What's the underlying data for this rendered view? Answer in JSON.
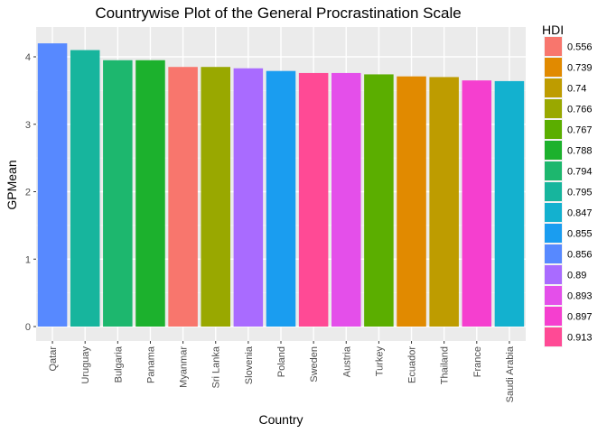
{
  "chart_data": {
    "type": "bar",
    "title": "Countrywise Plot of the General Procrastination Scale",
    "xlabel": "Country",
    "ylabel": "GPMean",
    "ylim": [
      0,
      4.3
    ],
    "yticks": [
      0,
      1,
      2,
      3,
      4
    ],
    "grid": true,
    "legend_position": "right",
    "categories": [
      "Qatar",
      "Uruguay",
      "Bulgaria",
      "Panama",
      "Myanmar",
      "Sri Lanka",
      "Slovenia",
      "Poland",
      "Sweden",
      "Austria",
      "Turkey",
      "Ecuador",
      "Thailand",
      "France",
      "Saudi Arabia"
    ],
    "values": [
      4.2,
      4.1,
      3.95,
      3.95,
      3.85,
      3.85,
      3.83,
      3.79,
      3.76,
      3.76,
      3.74,
      3.71,
      3.7,
      3.65,
      3.64
    ],
    "hdi": [
      "0.856",
      "0.795",
      "0.794",
      "0.788",
      "0.556",
      "0.766",
      "0.89",
      "0.855",
      "0.913",
      "0.893",
      "0.767",
      "0.739",
      "0.74",
      "0.897",
      "0.847"
    ],
    "legend": {
      "title": "HDI",
      "entries": [
        {
          "label": "0.556",
          "color": "#F8766D"
        },
        {
          "label": "0.739",
          "color": "#E18A00"
        },
        {
          "label": "0.74",
          "color": "#BE9C00"
        },
        {
          "label": "0.766",
          "color": "#8CAB00"
        },
        {
          "label": "0.767",
          "color": "#24B700"
        },
        {
          "label": "0.788",
          "color": "#00BE70"
        },
        {
          "label": "0.794",
          "color": "#00C1AB"
        },
        {
          "label": "0.795",
          "color": "#00BBDA"
        },
        {
          "label": "0.847",
          "color": "#00ACFC"
        },
        {
          "label": "0.855",
          "color": "#8B93FF"
        },
        {
          "label": "0.856",
          "color": "#D575FE"
        },
        {
          "label": "0.89",
          "color": "#F962DD"
        },
        {
          "label": "0.893",
          "color": "#FF65AC"
        },
        {
          "label": "0.897",
          "color": "#E76BF3"
        },
        {
          "label": "0.913",
          "color": "#FF62BC"
        }
      ]
    },
    "bar_colors": {
      "0.556": "#F8766D",
      "0.739": "#E18A00",
      "0.74": "#BE9C00",
      "0.766": "#99A800",
      "0.767": "#5BAE00",
      "0.788": "#1CB12D",
      "0.794": "#1DB76E",
      "0.795": "#17B59D",
      "0.847": "#13B1CF",
      "0.855": "#1A9DF0",
      "0.856": "#5789FF",
      "0.89": "#A96BFF",
      "0.893": "#E44FEA",
      "0.897": "#F53FCF",
      "0.913": "#FF4A95"
    }
  }
}
